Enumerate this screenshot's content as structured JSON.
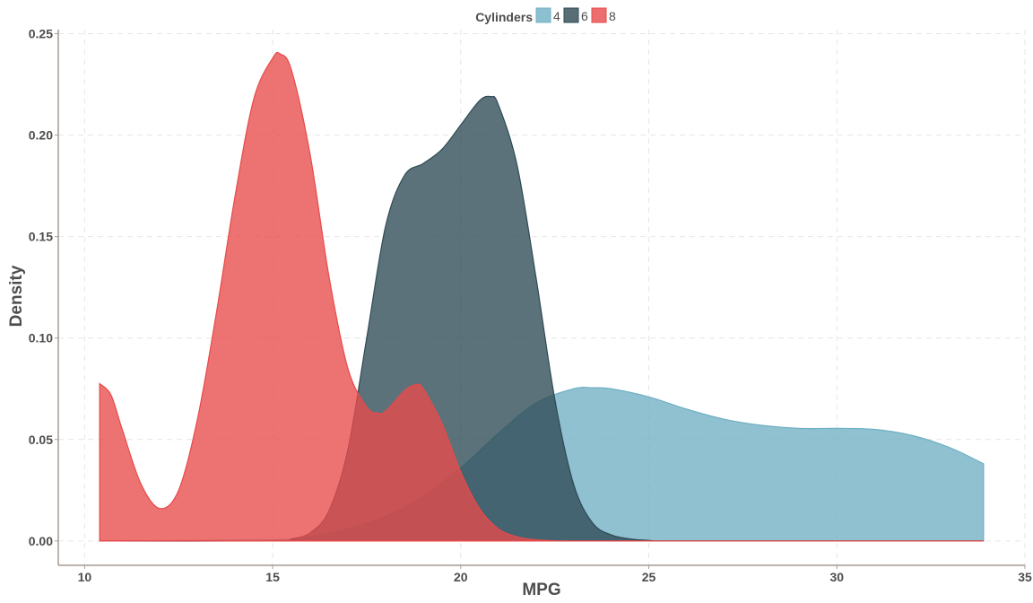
{
  "chart_data": {
    "type": "area",
    "title": "",
    "xlabel": "MPG",
    "ylabel": "Density",
    "xlim": [
      9.3,
      35.0
    ],
    "ylim": [
      -0.012,
      0.252
    ],
    "xticks": [
      10,
      15,
      20,
      25,
      30,
      35
    ],
    "xtick_labels": [
      "10",
      "15",
      "20",
      "25",
      "30",
      "35"
    ],
    "yticks": [
      0.0,
      0.05,
      0.1,
      0.15,
      0.2,
      0.25
    ],
    "ytick_labels": [
      "0.00",
      "0.05",
      "0.10",
      "0.15",
      "0.20",
      "0.25"
    ],
    "grid": true,
    "legend": {
      "title": "Cylinders",
      "position": "top-center"
    },
    "series": [
      {
        "name": "4",
        "color": "#6fb0c4",
        "x": [
          10.4,
          15.0,
          16.0,
          17.0,
          18.0,
          19.0,
          20.0,
          21.0,
          22.0,
          23.0,
          23.5,
          24.0,
          25.0,
          26.0,
          27.0,
          28.0,
          29.0,
          30.0,
          31.0,
          32.0,
          33.0,
          33.9
        ],
        "values": [
          0.0,
          0.0005,
          0.002,
          0.006,
          0.012,
          0.022,
          0.036,
          0.053,
          0.068,
          0.075,
          0.0755,
          0.075,
          0.071,
          0.065,
          0.06,
          0.057,
          0.0555,
          0.0555,
          0.055,
          0.052,
          0.046,
          0.038
        ]
      },
      {
        "name": "6",
        "color": "#2e4a54",
        "x": [
          10.4,
          15.0,
          15.5,
          16.0,
          16.5,
          17.0,
          17.5,
          18.0,
          18.5,
          19.0,
          19.5,
          20.0,
          20.5,
          20.8,
          21.0,
          21.5,
          22.0,
          22.5,
          23.0,
          23.5,
          24.0,
          24.5,
          25.0,
          26.0,
          33.9
        ],
        "values": [
          0.0,
          0.0,
          0.001,
          0.004,
          0.015,
          0.045,
          0.1,
          0.155,
          0.18,
          0.186,
          0.193,
          0.205,
          0.217,
          0.219,
          0.215,
          0.185,
          0.13,
          0.07,
          0.028,
          0.009,
          0.003,
          0.001,
          0.0003,
          0.0,
          0.0
        ]
      },
      {
        "name": "8",
        "color": "#e84a4a",
        "x": [
          10.4,
          10.7,
          11.0,
          11.5,
          12.0,
          12.5,
          13.0,
          13.5,
          14.0,
          14.5,
          15.0,
          15.2,
          15.5,
          16.0,
          16.5,
          17.0,
          17.5,
          17.8,
          18.0,
          18.5,
          18.8,
          19.0,
          19.5,
          20.0,
          20.5,
          21.0,
          21.5,
          22.0,
          22.5,
          23.0,
          24.0,
          33.9
        ],
        "values": [
          0.0775,
          0.072,
          0.055,
          0.028,
          0.016,
          0.025,
          0.06,
          0.112,
          0.17,
          0.218,
          0.238,
          0.24,
          0.232,
          0.19,
          0.13,
          0.085,
          0.066,
          0.063,
          0.064,
          0.074,
          0.077,
          0.075,
          0.058,
          0.034,
          0.016,
          0.006,
          0.002,
          0.0006,
          0.0001,
          0.0,
          0.0,
          0.0
        ]
      }
    ]
  }
}
